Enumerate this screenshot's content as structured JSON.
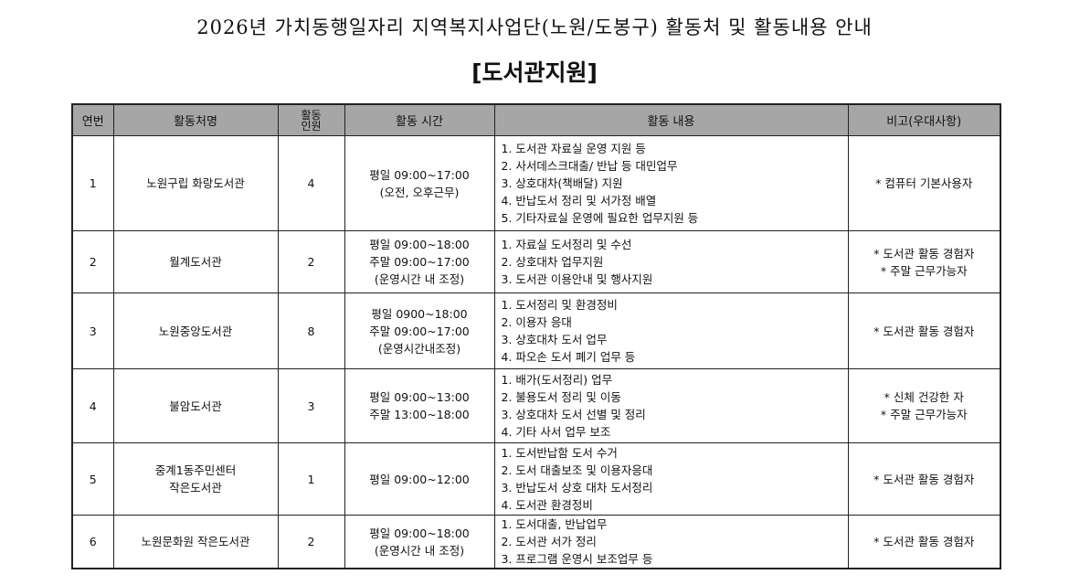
{
  "title": "2026년 가치동행일자리 지역복지사업단(노원/도봉구) 활동처 및 활동내용 안내",
  "subtitle": "[도서관지원]",
  "columns": [
    "연번",
    "활동처명",
    "활동\n인원",
    "활동 시간",
    "활동 내용",
    "비고(우대사항)"
  ],
  "rows": [
    {
      "no": "1",
      "place": "노원구립 화랑도서관",
      "people": "4",
      "time": "평일 09:00~17:00\n(오전, 오후근무)",
      "content": "1. 도서관 자료실 운영 지원 등\n2. 사서데스크대출/ 반납 등 대민업무\n3. 상호대차(책배달) 지원\n4. 반납도서 정리 및 서가정 배열\n5. 기타자료실 운영에 필요한 업무지원 등",
      "note": "* 컴퓨터 기본사용자"
    },
    {
      "no": "2",
      "place": "월계도서관",
      "people": "2",
      "time": "평일 09:00~18:00\n주말 09:00~17:00\n(운영시간 내 조정)",
      "content": "1. 자료실 도서정리 및 수선\n2. 상호대차   업무지원\n3. 도서관 이용안내 및 행사지원",
      "note": "* 도서관 활동 경험자\n* 주말 근무가능자"
    },
    {
      "no": "3",
      "place": "노원중앙도서관",
      "people": "8",
      "time": "평일 0900~18:00\n주말 09:00~17:00\n(운영시간내조정)",
      "content": "1. 도서정리 및 환경정비\n2. 이용자 응대\n3. 상호대차 도서 업무\n4. 파오손 도서 폐기 업무 등",
      "note": "* 도서관 활동 경험자"
    },
    {
      "no": "4",
      "place": "불암도서관",
      "people": "3",
      "time": "평일 09:00~13:00\n주말 13:00~18:00",
      "content": "1. 배가(도서정리) 업무\n2. 불용도서 정리 및 이동\n3. 상호대차 도서 선별 및 정리\n4. 기타 사서 업무 보조",
      "note": "* 신체 건강한 자\n* 주말 근무가능자"
    },
    {
      "no": "5",
      "place": "중계1동주민센터\n작은도서관",
      "people": "1",
      "time": "평일 09:00~12:00",
      "content": "1. 도서반납함 도서 수거\n2. 도서 대출보조 및 이용자응대\n3. 반납도서 상호 대차 도서정리\n4. 도서관 환경정비",
      "note": "* 도서관 활동 경험자"
    },
    {
      "no": "6",
      "place": "노원문화원 작은도서관",
      "people": "2",
      "time": "평일 09:00~18:00\n(운영시간 내 조정)",
      "content": "1. 도서대출, 반납업무\n2. 도서관 서가 정리\n3. 프로그램 운영시 보조업무 등",
      "note": "* 도서관 활동 경험자"
    }
  ]
}
